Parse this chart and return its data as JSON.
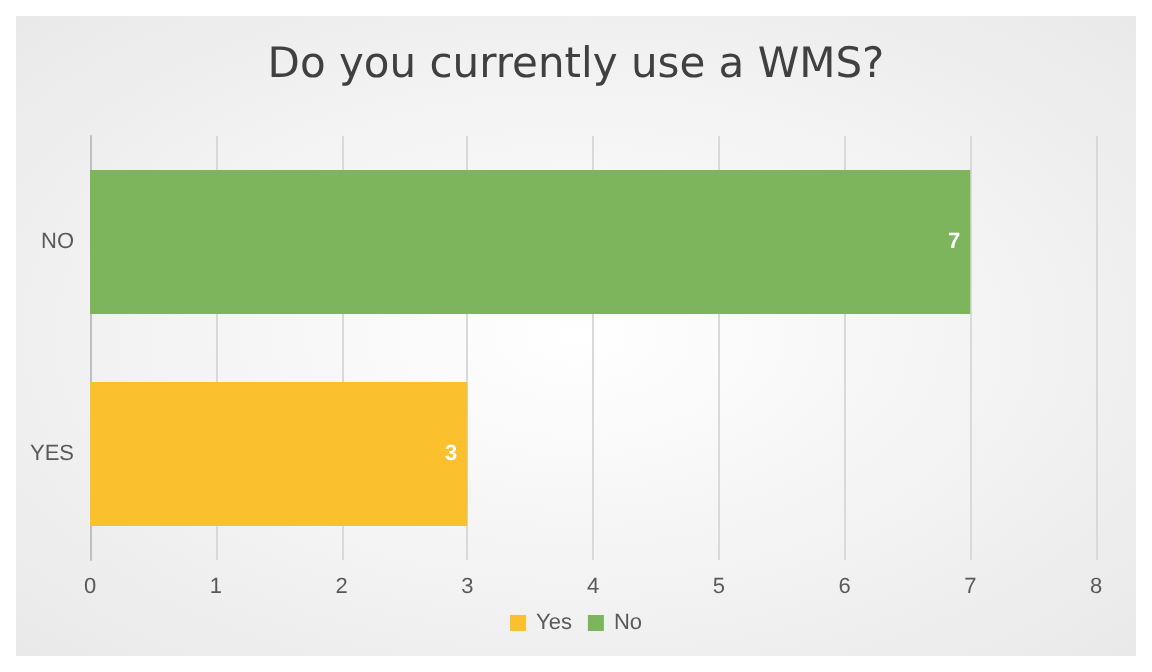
{
  "chart_data": {
    "type": "bar",
    "title": "Do you currently use a WMS?",
    "orientation": "horizontal",
    "stacked": true,
    "categories": [
      "NO",
      "YES"
    ],
    "series": [
      {
        "name": "Yes",
        "color": "#fbc02d",
        "values": [
          null,
          3
        ]
      },
      {
        "name": "No",
        "color": "#7cb55c",
        "values": [
          7,
          null
        ]
      }
    ],
    "xlim": [
      0,
      8
    ],
    "xticks": [
      0,
      1,
      2,
      3,
      4,
      5,
      6,
      7,
      8
    ],
    "grid": "x",
    "legend": "bottom",
    "data_labels": true
  }
}
